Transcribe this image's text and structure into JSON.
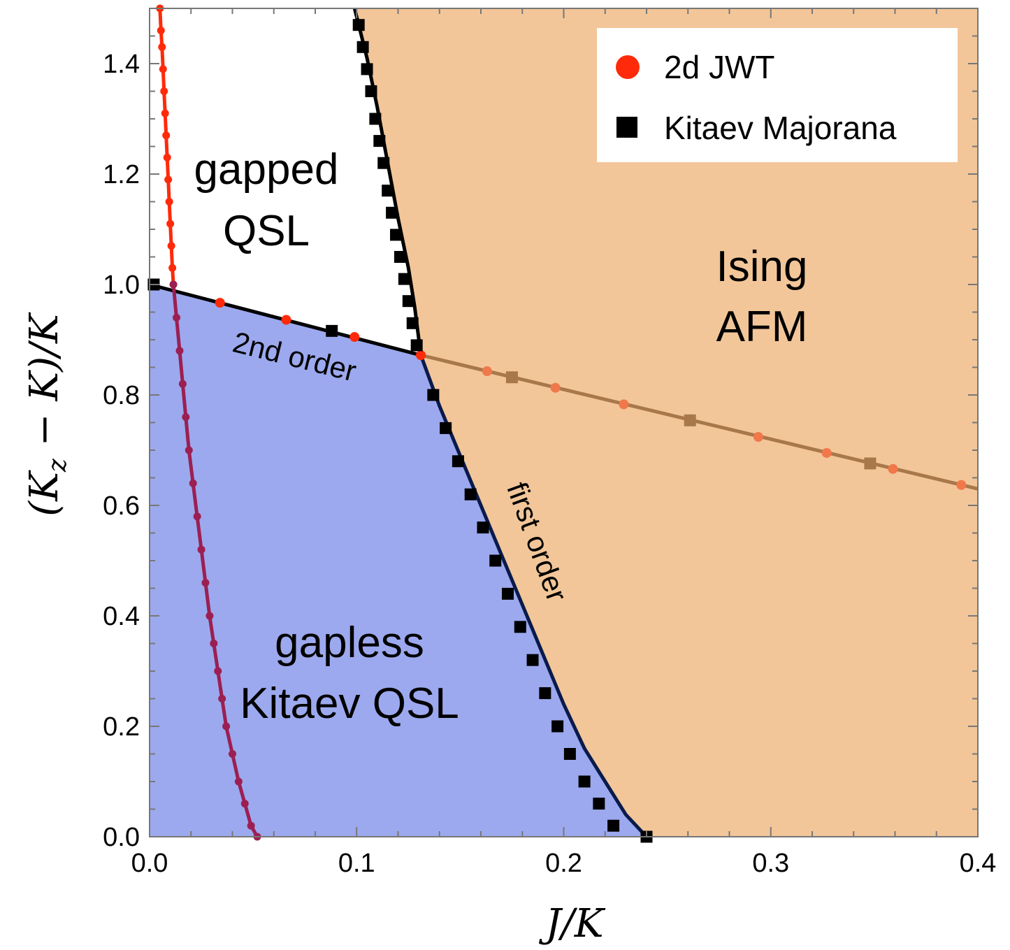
{
  "chart_data": {
    "type": "scatter",
    "title": "",
    "xlabel": "J/K",
    "ylabel": "(K_z − K)/K",
    "ylabel_parts": [
      "(K",
      "z",
      " − K)/K"
    ],
    "xlim": [
      0.0,
      0.4
    ],
    "ylim": [
      0.0,
      1.5
    ],
    "x_ticks": [
      "0.0",
      "0.1",
      "0.2",
      "0.3",
      "0.4"
    ],
    "y_ticks": [
      "0.0",
      "0.2",
      "0.4",
      "0.6",
      "0.8",
      "1.0",
      "1.2",
      "1.4"
    ],
    "legend": {
      "position": "top-right",
      "entries": [
        {
          "label": "2d JWT",
          "marker": "circle",
          "color": "#ff2a0a"
        },
        {
          "label": "Kitaev Majorana",
          "marker": "square",
          "color": "#000000"
        }
      ]
    },
    "regions": [
      {
        "name": "gapped-qsl",
        "label_lines": [
          "gapped",
          "QSL"
        ],
        "color": "#ffffff",
        "label_at": [
          0.057,
          1.17
        ]
      },
      {
        "name": "ising-afm",
        "label_lines": [
          "Ising",
          "AFM"
        ],
        "color": "#f2c699",
        "label_at": [
          0.295,
          0.98
        ]
      },
      {
        "name": "gapless-kitaev-qsl",
        "label_lines": [
          "gapless",
          "Kitaev QSL"
        ],
        "color": "#9ca9ee",
        "label_at": [
          0.097,
          0.33
        ]
      }
    ],
    "boundaries": {
      "second_order": {
        "label": "2nd order",
        "color": "#000000",
        "points": [
          [
            0.0,
            1.0
          ],
          [
            0.131,
            0.872
          ]
        ]
      },
      "first_order_upper": {
        "color": "#000000",
        "points": [
          [
            0.099,
            1.5
          ],
          [
            0.105,
            1.41
          ],
          [
            0.11,
            1.32
          ],
          [
            0.115,
            1.22
          ],
          [
            0.12,
            1.12
          ],
          [
            0.125,
            1.03
          ],
          [
            0.128,
            0.96
          ],
          [
            0.131,
            0.872
          ]
        ]
      },
      "first_order_lower": {
        "label": "first order",
        "color": "#0a1a4a",
        "points": [
          [
            0.131,
            0.872
          ],
          [
            0.14,
            0.78
          ],
          [
            0.15,
            0.69
          ],
          [
            0.16,
            0.6
          ],
          [
            0.17,
            0.51
          ],
          [
            0.18,
            0.42
          ],
          [
            0.19,
            0.33
          ],
          [
            0.2,
            0.24
          ],
          [
            0.21,
            0.16
          ],
          [
            0.22,
            0.1
          ],
          [
            0.23,
            0.04
          ],
          [
            0.24,
            0.0
          ]
        ]
      },
      "afm_extension": {
        "color": "#a8784a",
        "points": [
          [
            0.131,
            0.872
          ],
          [
            0.4,
            0.63
          ]
        ]
      }
    },
    "series": [
      {
        "name": "2d JWT (left crossover)",
        "marker": "circle",
        "color": "#ff2a0a",
        "line": true,
        "points": [
          [
            0.005,
            1.5
          ],
          [
            0.0055,
            1.46
          ],
          [
            0.006,
            1.43
          ],
          [
            0.0065,
            1.39
          ],
          [
            0.007,
            1.35
          ],
          [
            0.0075,
            1.31
          ],
          [
            0.008,
            1.27
          ],
          [
            0.0085,
            1.23
          ],
          [
            0.009,
            1.19
          ],
          [
            0.0095,
            1.15
          ],
          [
            0.01,
            1.11
          ],
          [
            0.0105,
            1.07
          ],
          [
            0.011,
            1.03
          ],
          [
            0.0115,
            1.0
          ]
        ]
      },
      {
        "name": "2d JWT (lower crossover)",
        "marker": "circle",
        "color": "#9c1f52",
        "line": true,
        "points": [
          [
            0.0115,
            1.0
          ],
          [
            0.013,
            0.94
          ],
          [
            0.0145,
            0.88
          ],
          [
            0.016,
            0.82
          ],
          [
            0.0175,
            0.76
          ],
          [
            0.019,
            0.7
          ],
          [
            0.021,
            0.64
          ],
          [
            0.023,
            0.58
          ],
          [
            0.025,
            0.52
          ],
          [
            0.027,
            0.46
          ],
          [
            0.029,
            0.4
          ],
          [
            0.031,
            0.35
          ],
          [
            0.033,
            0.3
          ],
          [
            0.035,
            0.25
          ],
          [
            0.037,
            0.2
          ],
          [
            0.04,
            0.15
          ],
          [
            0.043,
            0.1
          ],
          [
            0.046,
            0.06
          ],
          [
            0.049,
            0.02
          ],
          [
            0.052,
            0.0
          ]
        ]
      },
      {
        "name": "2d JWT (2nd order)",
        "marker": "circle",
        "color": "#ff2a0a",
        "line": false,
        "points": [
          [
            0.034,
            0.967
          ],
          [
            0.066,
            0.936
          ],
          [
            0.099,
            0.905
          ],
          [
            0.131,
            0.872
          ]
        ]
      },
      {
        "name": "Kitaev Majorana (2nd order)",
        "marker": "square",
        "color": "#000000",
        "line": false,
        "points": [
          [
            0.002,
            1.0
          ],
          [
            0.088,
            0.916
          ]
        ]
      },
      {
        "name": "Kitaev Majorana (first order upper)",
        "marker": "square",
        "color": "#000000",
        "line": false,
        "points": [
          [
            0.101,
            1.47
          ],
          [
            0.103,
            1.43
          ],
          [
            0.105,
            1.39
          ],
          [
            0.107,
            1.35
          ],
          [
            0.109,
            1.3
          ],
          [
            0.111,
            1.26
          ],
          [
            0.113,
            1.22
          ],
          [
            0.115,
            1.17
          ],
          [
            0.117,
            1.13
          ],
          [
            0.119,
            1.09
          ],
          [
            0.121,
            1.05
          ],
          [
            0.123,
            1.01
          ],
          [
            0.125,
            0.97
          ],
          [
            0.127,
            0.93
          ],
          [
            0.129,
            0.89
          ]
        ]
      },
      {
        "name": "Kitaev Majorana (first order lower)",
        "marker": "square",
        "color": "#000000",
        "line": false,
        "points": [
          [
            0.137,
            0.8
          ],
          [
            0.143,
            0.74
          ],
          [
            0.149,
            0.68
          ],
          [
            0.155,
            0.62
          ],
          [
            0.161,
            0.56
          ],
          [
            0.167,
            0.5
          ],
          [
            0.173,
            0.44
          ],
          [
            0.179,
            0.38
          ],
          [
            0.185,
            0.32
          ],
          [
            0.191,
            0.26
          ],
          [
            0.197,
            0.2
          ],
          [
            0.203,
            0.15
          ],
          [
            0.21,
            0.1
          ],
          [
            0.217,
            0.06
          ],
          [
            0.224,
            0.02
          ],
          [
            0.24,
            0.0
          ]
        ]
      },
      {
        "name": "2d JWT (AFM extension)",
        "marker": "circle",
        "color": "#f0784a",
        "line": false,
        "points": [
          [
            0.163,
            0.843
          ],
          [
            0.196,
            0.813
          ],
          [
            0.229,
            0.783
          ],
          [
            0.294,
            0.724
          ],
          [
            0.327,
            0.695
          ],
          [
            0.359,
            0.666
          ],
          [
            0.392,
            0.637
          ]
        ]
      },
      {
        "name": "Kitaev Majorana (AFM extension)",
        "marker": "square",
        "color": "#a8784a",
        "line": false,
        "points": [
          [
            0.175,
            0.832
          ],
          [
            0.261,
            0.754
          ],
          [
            0.348,
            0.676
          ]
        ]
      }
    ]
  }
}
